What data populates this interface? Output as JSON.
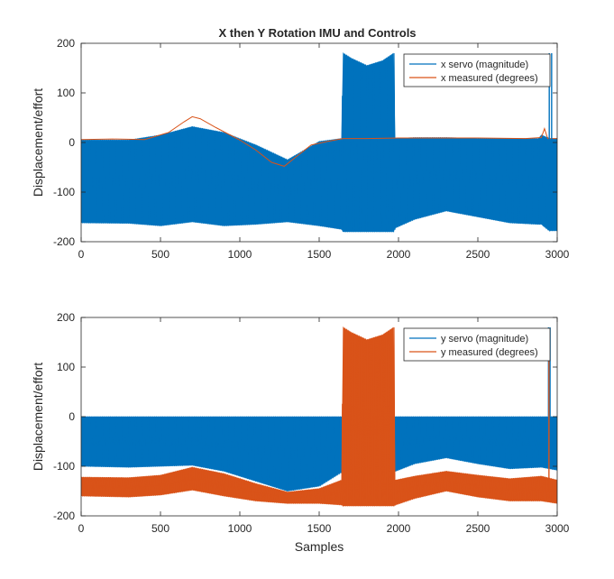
{
  "figure_title": "X then Y Rotation IMU and Controls",
  "chart_data": [
    {
      "type": "area",
      "title": "X then Y Rotation IMU and Controls",
      "xlabel": "",
      "ylabel": "Displacement/effort",
      "xlim": [
        0,
        3000
      ],
      "ylim": [
        -200,
        200
      ],
      "xticks": [
        0,
        500,
        1000,
        1500,
        2000,
        2500,
        3000
      ],
      "yticks": [
        -200,
        -100,
        0,
        100,
        200
      ],
      "legend_position": "top-right",
      "series": [
        {
          "name": "x servo (magnitude)",
          "color": "#0072BD",
          "style": "oscillating-envelope",
          "x": [
            0,
            300,
            500,
            700,
            900,
            1100,
            1300,
            1500,
            1640,
            1650,
            1700,
            1800,
            1900,
            1970,
            1980,
            2100,
            2300,
            2500,
            2700,
            2880,
            2900,
            2950,
            3000
          ],
          "upper": [
            5,
            5,
            15,
            32,
            20,
            -5,
            -35,
            2,
            8,
            180,
            170,
            155,
            165,
            180,
            8,
            10,
            10,
            8,
            8,
            8,
            15,
            8,
            8
          ],
          "lower": [
            -162,
            -163,
            -168,
            -160,
            -168,
            -165,
            -160,
            -168,
            -175,
            -180,
            -180,
            -180,
            -180,
            -180,
            -172,
            -155,
            -138,
            -150,
            -162,
            -165,
            -165,
            -178,
            -178
          ]
        },
        {
          "name": "x measured (degrees)",
          "color": "#D95319",
          "style": "line",
          "x": [
            0,
            200,
            400,
            550,
            650,
            700,
            750,
            850,
            1000,
            1100,
            1200,
            1280,
            1350,
            1450,
            1550,
            1650,
            1800,
            2000,
            2200,
            2500,
            2800,
            2900,
            2920,
            2940,
            3000
          ],
          "y": [
            6,
            7,
            6,
            20,
            42,
            52,
            48,
            30,
            5,
            -15,
            -40,
            -48,
            -30,
            -5,
            2,
            8,
            8,
            9,
            9,
            9,
            8,
            10,
            28,
            8,
            8
          ]
        }
      ],
      "spikes": [
        {
          "x": 2950,
          "y_from": 0,
          "y_to": 180,
          "color": "#0072BD"
        },
        {
          "x": 2965,
          "y_from": 0,
          "y_to": 180,
          "color": "#0072BD"
        }
      ]
    },
    {
      "type": "area",
      "title": "",
      "xlabel": "Samples",
      "ylabel": "Displacement/effort",
      "xlim": [
        0,
        3000
      ],
      "ylim": [
        -200,
        200
      ],
      "xticks": [
        0,
        500,
        1000,
        1500,
        2000,
        2500,
        3000
      ],
      "yticks": [
        -200,
        -100,
        0,
        100,
        200
      ],
      "legend_position": "top-right",
      "series": [
        {
          "name": "y servo (magnitude)",
          "color": "#0072BD",
          "style": "oscillating-envelope",
          "x": [
            0,
            300,
            500,
            700,
            900,
            1100,
            1300,
            1500,
            1640,
            1960,
            1980,
            2100,
            2300,
            2500,
            2700,
            2900,
            3000
          ],
          "upper": [
            0,
            0,
            0,
            0,
            0,
            0,
            0,
            0,
            0,
            0,
            0,
            0,
            0,
            0,
            0,
            0,
            0
          ],
          "lower": [
            -100,
            -102,
            -100,
            -98,
            -110,
            -130,
            -150,
            -140,
            -112,
            -112,
            -110,
            -95,
            -83,
            -95,
            -105,
            -102,
            -108
          ]
        },
        {
          "name": "y measured (degrees)",
          "color": "#D95319",
          "style": "oscillating-envelope",
          "x": [
            0,
            300,
            500,
            700,
            900,
            1100,
            1300,
            1500,
            1640,
            1650,
            1700,
            1800,
            1900,
            1970,
            1980,
            2100,
            2300,
            2500,
            2700,
            2900,
            3000
          ],
          "upper": [
            -122,
            -123,
            -118,
            -102,
            -115,
            -135,
            -152,
            -145,
            -128,
            180,
            170,
            155,
            165,
            180,
            -128,
            -120,
            -110,
            -118,
            -125,
            -120,
            -128
          ],
          "lower": [
            -160,
            -162,
            -158,
            -148,
            -160,
            -170,
            -175,
            -175,
            -178,
            -180,
            -180,
            -180,
            -180,
            -180,
            -178,
            -165,
            -150,
            -162,
            -170,
            -170,
            -175
          ]
        }
      ],
      "spikes": [
        {
          "x": 2945,
          "y_from": 0,
          "y_to": 180,
          "color": "#0072BD"
        },
        {
          "x": 2955,
          "y_from": 0,
          "y_to": 180,
          "color": "#0072BD"
        },
        {
          "x": 2948,
          "y_from": -150,
          "y_to": 175,
          "color": "#D95319"
        }
      ]
    }
  ]
}
